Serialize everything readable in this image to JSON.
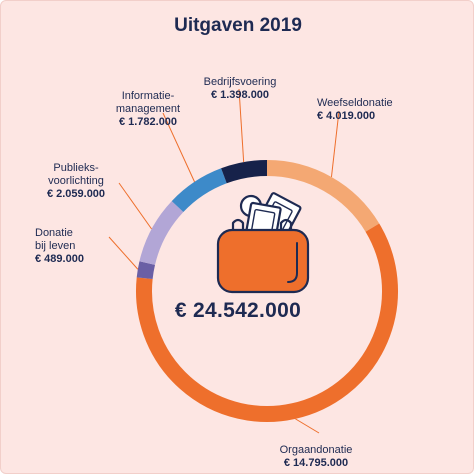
{
  "title": "Uitgaven 2019",
  "total": "€ 24.542.000",
  "colors": {
    "background": "#fde6e3",
    "navy": "#1e2a52",
    "orange": "#ee6f2c",
    "light_orange": "#f4a873",
    "blue": "#3d8ac9",
    "lavender": "#b2a6d6",
    "purple": "#6a5fa5",
    "dark_navy": "#16224a"
  },
  "chart_data": {
    "type": "pie",
    "variant": "donut",
    "title": "Uitgaven 2019",
    "center_label": "€ 24.542.000",
    "unit": "€",
    "slices": [
      {
        "name": "Weefseldonatie",
        "label": "Weefseldonatie",
        "value": 4019000,
        "value_label": "€ 4.019.000",
        "color": "#f4a873"
      },
      {
        "name": "Orgaandonatie",
        "label": "Orgaandonatie",
        "value": 14795000,
        "value_label": "€ 14.795.000",
        "color": "#ee6f2c"
      },
      {
        "name": "Donatie bij leven",
        "label": "Donatie\nbij leven",
        "value": 489000,
        "value_label": "€ 489.000",
        "color": "#6a5fa5"
      },
      {
        "name": "Publieksvoorlichting",
        "label": "Publieks-\nvoorlichting",
        "value": 2059000,
        "value_label": "€ 2.059.000",
        "color": "#b2a6d6"
      },
      {
        "name": "Informatiemanagement",
        "label": "Informatie-\nmanagement",
        "value": 1782000,
        "value_label": "€ 1.782.000",
        "color": "#3d8ac9"
      },
      {
        "name": "Bedrijfsvoering",
        "label": "Bedrijfsvoering",
        "value": 1398000,
        "value_label": "€ 1.398.000",
        "color": "#16224a"
      }
    ]
  },
  "icon": "wallet-with-money-icon"
}
